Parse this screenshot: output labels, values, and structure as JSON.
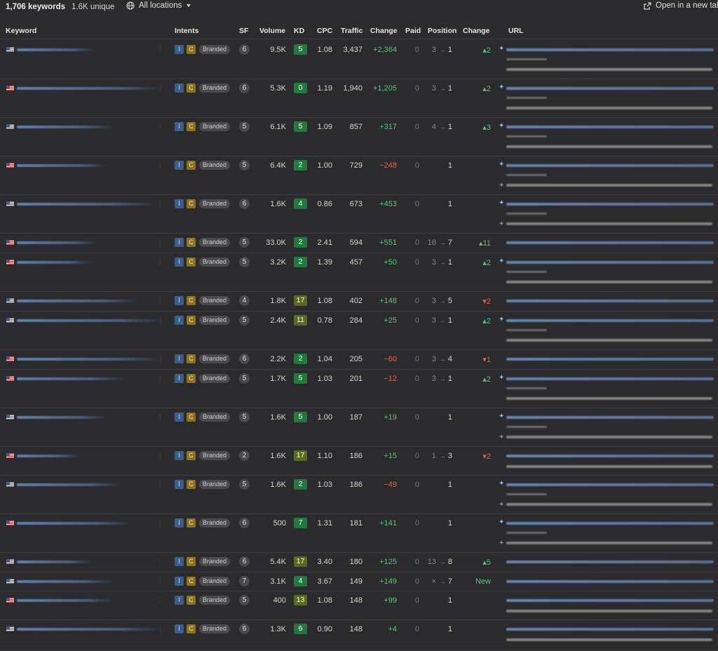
{
  "summary": {
    "keywords": "1,706 keywords",
    "unique": "1.6K unique",
    "location": "All locations",
    "open_tab": "Open in a new tab"
  },
  "icons": {
    "location": "globe-icon",
    "dropdown": "caret-down-icon",
    "open": "external-link-icon"
  },
  "columns": [
    "Keyword",
    "Intents",
    "SF",
    "Volume",
    "KD",
    "CPC",
    "Traffic",
    "Change",
    "Paid",
    "Position",
    "Change",
    "URL"
  ],
  "intent_badges": {
    "i": "I",
    "c": "C",
    "branded": "Branded"
  },
  "colors": {
    "positive": "#5bc47b",
    "negative": "#e0625e",
    "kd_easy": "#1f7a3c",
    "kd_medium": "#5a6b1c"
  },
  "rows": [
    {
      "sf": "6",
      "volume": "9.5K",
      "kd": "5",
      "cpc": "1.08",
      "traffic": "3,437",
      "change": "+2,364",
      "paid": "0",
      "pos_from": "3",
      "pos_to": "1",
      "pos_change": "▴2"
    },
    {
      "sf": "6",
      "volume": "5.3K",
      "kd": "0",
      "cpc": "1.19",
      "traffic": "1,940",
      "change": "+1,205",
      "paid": "0",
      "pos_from": "3",
      "pos_to": "1",
      "pos_change": "▴2"
    },
    {
      "sf": "5",
      "volume": "6.1K",
      "kd": "5",
      "cpc": "1.09",
      "traffic": "857",
      "change": "+317",
      "paid": "0",
      "pos_from": "4",
      "pos_to": "1",
      "pos_change": "▴3"
    },
    {
      "sf": "5",
      "volume": "6.4K",
      "kd": "2",
      "cpc": "1.00",
      "traffic": "729",
      "change": "−248",
      "paid": "0",
      "pos_from": "",
      "pos_to": "1",
      "pos_change": ""
    },
    {
      "sf": "6",
      "volume": "1.6K",
      "kd": "4",
      "cpc": "0.86",
      "traffic": "673",
      "change": "+453",
      "paid": "0",
      "pos_from": "",
      "pos_to": "1",
      "pos_change": ""
    },
    {
      "sf": "5",
      "volume": "33.0K",
      "kd": "2",
      "cpc": "2.41",
      "traffic": "594",
      "change": "+551",
      "paid": "0",
      "pos_from": "18",
      "pos_to": "7",
      "pos_change": "▴11"
    },
    {
      "sf": "5",
      "volume": "3.2K",
      "kd": "2",
      "cpc": "1.39",
      "traffic": "457",
      "change": "+50",
      "paid": "0",
      "pos_from": "3",
      "pos_to": "1",
      "pos_change": "▴2"
    },
    {
      "sf": "4",
      "volume": "1.8K",
      "kd": "17",
      "cpc": "1.08",
      "traffic": "402",
      "change": "+148",
      "paid": "0",
      "pos_from": "3",
      "pos_to": "5",
      "pos_change": "▾2"
    },
    {
      "sf": "5",
      "volume": "2.4K",
      "kd": "11",
      "cpc": "0.78",
      "traffic": "284",
      "change": "+25",
      "paid": "0",
      "pos_from": "3",
      "pos_to": "1",
      "pos_change": "▴2"
    },
    {
      "sf": "6",
      "volume": "2.2K",
      "kd": "2",
      "cpc": "1.04",
      "traffic": "205",
      "change": "−60",
      "paid": "0",
      "pos_from": "3",
      "pos_to": "4",
      "pos_change": "▾1"
    },
    {
      "sf": "5",
      "volume": "1.7K",
      "kd": "5",
      "cpc": "1.03",
      "traffic": "201",
      "change": "−12",
      "paid": "0",
      "pos_from": "3",
      "pos_to": "1",
      "pos_change": "▴2"
    },
    {
      "sf": "5",
      "volume": "1.6K",
      "kd": "5",
      "cpc": "1.00",
      "traffic": "187",
      "change": "+19",
      "paid": "0",
      "pos_from": "",
      "pos_to": "1",
      "pos_change": ""
    },
    {
      "sf": "2",
      "volume": "1.6K",
      "kd": "17",
      "cpc": "1.10",
      "traffic": "186",
      "change": "+15",
      "paid": "0",
      "pos_from": "1",
      "pos_to": "3",
      "pos_change": "▾2"
    },
    {
      "sf": "5",
      "volume": "1.6K",
      "kd": "2",
      "cpc": "1.03",
      "traffic": "186",
      "change": "−49",
      "paid": "0",
      "pos_from": "",
      "pos_to": "1",
      "pos_change": ""
    },
    {
      "sf": "6",
      "volume": "500",
      "kd": "7",
      "cpc": "1.31",
      "traffic": "181",
      "change": "+141",
      "paid": "0",
      "pos_from": "",
      "pos_to": "1",
      "pos_change": ""
    },
    {
      "sf": "6",
      "volume": "5.4K",
      "kd": "17",
      "cpc": "3.40",
      "traffic": "180",
      "change": "+125",
      "paid": "0",
      "pos_from": "13",
      "pos_to": "8",
      "pos_change": "▴5"
    },
    {
      "sf": "7",
      "volume": "3.1K",
      "kd": "4",
      "cpc": "3.67",
      "traffic": "149",
      "change": "+149",
      "paid": "0",
      "pos_from": "×",
      "pos_to": "7",
      "pos_change": "New"
    },
    {
      "sf": "5",
      "volume": "400",
      "kd": "13",
      "cpc": "1.08",
      "traffic": "148",
      "change": "+99",
      "paid": "0",
      "pos_from": "",
      "pos_to": "1",
      "pos_change": ""
    },
    {
      "sf": "6",
      "volume": "1.3K",
      "kd": "6",
      "cpc": "0.90",
      "traffic": "148",
      "change": "+4",
      "paid": "0",
      "pos_from": "",
      "pos_to": "1",
      "pos_change": ""
    }
  ]
}
